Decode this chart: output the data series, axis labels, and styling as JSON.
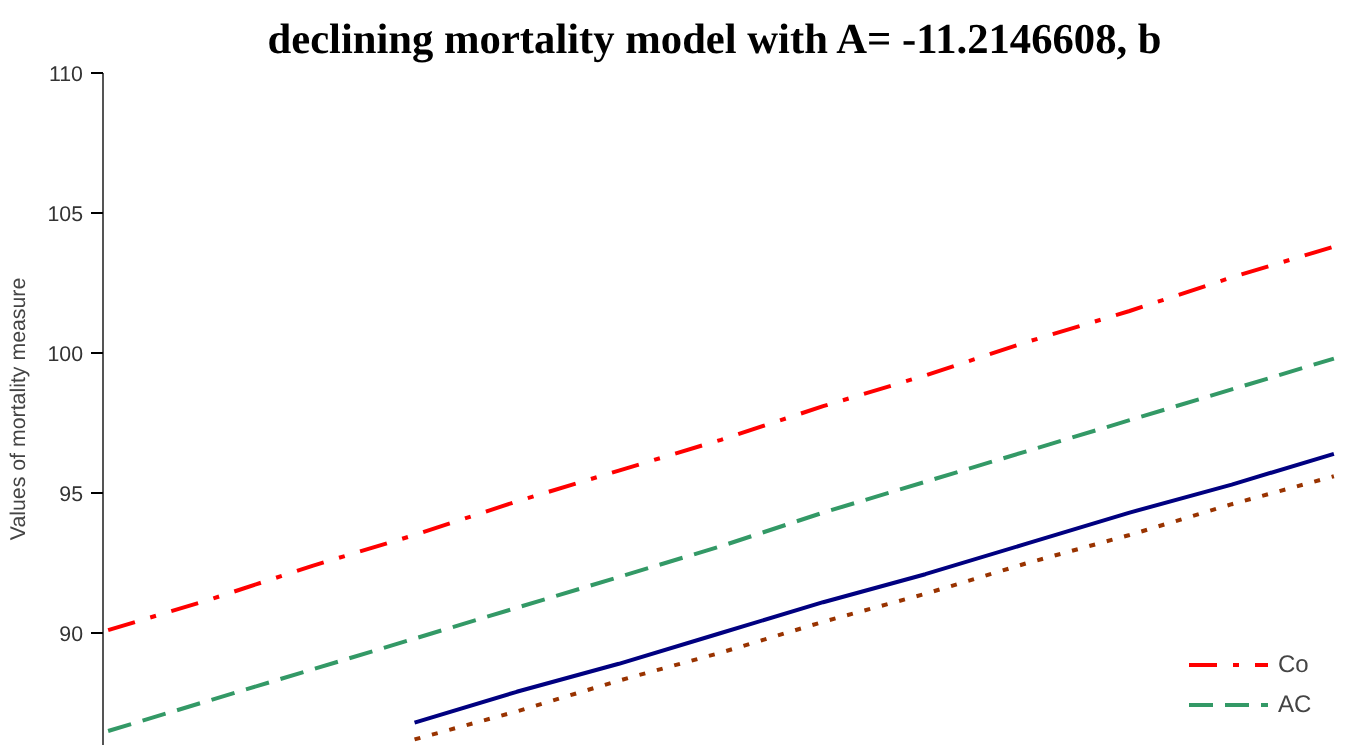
{
  "chart_data": {
    "type": "line",
    "title": "declining mortality model with  A= -11.2146608, b",
    "ylabel": "Values of mortality measure",
    "categories": [
      null,
      null,
      null,
      null,
      null,
      null,
      null,
      null,
      null,
      null,
      null,
      null,
      null
    ],
    "series": [
      {
        "name": "Co",
        "color": "#ff0000",
        "line_style": "dashdot",
        "values": [
          90.1,
          91.2,
          92.4,
          93.5,
          94.7,
          95.8,
          96.9,
          98.1,
          99.2,
          100.4,
          101.5,
          102.7,
          103.8
        ]
      },
      {
        "name": "AC",
        "color": "#339966",
        "line_style": "dashed",
        "values": [
          86.5,
          87.6,
          88.7,
          89.8,
          90.9,
          92.0,
          93.1,
          94.3,
          95.4,
          96.5,
          97.6,
          98.7,
          99.8
        ]
      },
      {
        "color": "#000080",
        "line_style": "solid",
        "values": [
          null,
          null,
          null,
          86.8,
          87.9,
          88.9,
          90.0,
          91.1,
          92.1,
          93.2,
          94.3,
          95.3,
          96.4
        ]
      },
      {
        "color": "#993300",
        "line_style": "dotted",
        "values": [
          null,
          null,
          null,
          86.2,
          87.2,
          88.3,
          89.3,
          90.4,
          91.4,
          92.5,
          93.5,
          94.6,
          95.6
        ]
      }
    ],
    "ylim": [
      86,
      110
    ],
    "yticks": [
      90,
      95,
      100,
      105,
      110
    ],
    "grid": false,
    "legend": "bottom right",
    "tick_labels": "y"
  }
}
